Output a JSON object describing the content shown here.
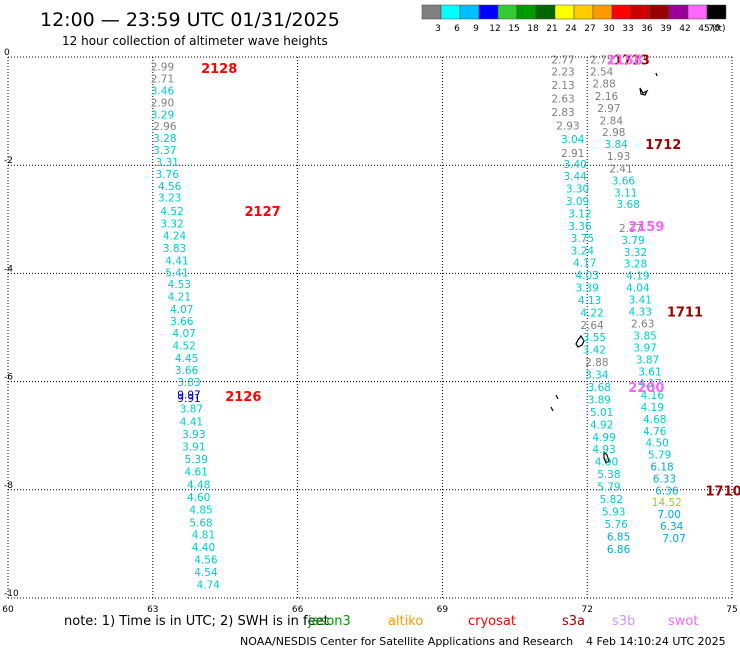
{
  "title": "12:00 — 23:59 UTC 01/31/2025",
  "subtitle": "12 hour collection of altimeter wave heights",
  "legend": {
    "unit": "(ft)",
    "labels": [
      "3",
      "6",
      "9",
      "12",
      "15",
      "18",
      "21",
      "24",
      "27",
      "30",
      "33",
      "36",
      "39",
      "42",
      "45",
      "70"
    ],
    "colors": [
      "#808080",
      "#00ffff",
      "#00bfff",
      "#0000ff",
      "#33cc33",
      "#009900",
      "#006600",
      "#ffff00",
      "#ffcc00",
      "#ff9900",
      "#ff0000",
      "#cc0000",
      "#990000",
      "#990099",
      "#ff66ff",
      "#000000"
    ]
  },
  "chart_data": {
    "type": "scatter",
    "xlim": [
      60,
      75
    ],
    "ylim": [
      -10,
      0
    ],
    "x_ticks": [
      "60",
      "63",
      "66",
      "69",
      "72",
      "75"
    ],
    "y_ticks": [
      "0",
      "-2",
      "-4",
      "-6",
      "-8",
      "-10"
    ],
    "grid": true,
    "point_labels": [
      {
        "x": 63.2,
        "y": -0.18,
        "label": "2.99",
        "color": "#808080"
      },
      {
        "x": 63.2,
        "y": -0.4,
        "label": "2.71",
        "color": "#808080"
      },
      {
        "x": 63.2,
        "y": -0.62,
        "label": "3.46",
        "color": "#00cccc"
      },
      {
        "x": 63.2,
        "y": -0.84,
        "label": "2.90",
        "color": "#808080"
      },
      {
        "x": 63.2,
        "y": -1.06,
        "label": "3.29",
        "color": "#00cccc"
      },
      {
        "x": 63.25,
        "y": -1.28,
        "label": "2.96",
        "color": "#808080"
      },
      {
        "x": 63.25,
        "y": -1.5,
        "label": "3.28",
        "color": "#00cccc"
      },
      {
        "x": 63.25,
        "y": -1.72,
        "label": "3.37",
        "color": "#00cccc"
      },
      {
        "x": 63.3,
        "y": -1.94,
        "label": "3.31",
        "color": "#00cccc"
      },
      {
        "x": 63.3,
        "y": -2.16,
        "label": "3.76",
        "color": "#00cccc"
      },
      {
        "x": 63.35,
        "y": -2.38,
        "label": "4.56",
        "color": "#00cccc"
      },
      {
        "x": 63.35,
        "y": -2.6,
        "label": "3.23",
        "color": "#00cccc"
      },
      {
        "x": 63.4,
        "y": -2.85,
        "label": "4.52",
        "color": "#00cccc"
      },
      {
        "x": 63.4,
        "y": -3.08,
        "label": "3.32",
        "color": "#00cccc"
      },
      {
        "x": 63.45,
        "y": -3.3,
        "label": "4.24",
        "color": "#00cccc"
      },
      {
        "x": 63.45,
        "y": -3.53,
        "label": "3.83",
        "color": "#00cccc"
      },
      {
        "x": 63.5,
        "y": -3.76,
        "label": "4.41",
        "color": "#00cccc"
      },
      {
        "x": 63.5,
        "y": -3.98,
        "label": "5.41",
        "color": "#00cccc"
      },
      {
        "x": 63.55,
        "y": -4.2,
        "label": "4.53",
        "color": "#00cccc"
      },
      {
        "x": 63.55,
        "y": -4.43,
        "label": "4.21",
        "color": "#00cccc"
      },
      {
        "x": 63.6,
        "y": -4.66,
        "label": "4.07",
        "color": "#00cccc"
      },
      {
        "x": 63.6,
        "y": -4.88,
        "label": "3.66",
        "color": "#00cccc"
      },
      {
        "x": 63.65,
        "y": -5.1,
        "label": "4.07",
        "color": "#00cccc"
      },
      {
        "x": 63.65,
        "y": -5.33,
        "label": "4.52",
        "color": "#00cccc"
      },
      {
        "x": 63.7,
        "y": -5.56,
        "label": "4.45",
        "color": "#00cccc"
      },
      {
        "x": 63.7,
        "y": -5.79,
        "label": "3.66",
        "color": "#00cccc"
      },
      {
        "x": 63.75,
        "y": -6.01,
        "label": "3.83",
        "color": "#00cccc"
      },
      {
        "x": 63.75,
        "y": -6.24,
        "label": "9.97",
        "color": "#0000cc"
      },
      {
        "x": 63.75,
        "y": -6.3,
        "label": "9.91",
        "color": "#0000cc"
      },
      {
        "x": 63.8,
        "y": -6.5,
        "label": "3.87",
        "color": "#00cccc"
      },
      {
        "x": 63.8,
        "y": -6.74,
        "label": "4.41",
        "color": "#00cccc"
      },
      {
        "x": 63.85,
        "y": -6.97,
        "label": "3.93",
        "color": "#00cccc"
      },
      {
        "x": 63.85,
        "y": -7.2,
        "label": "3.91",
        "color": "#00cccc"
      },
      {
        "x": 63.9,
        "y": -7.43,
        "label": "5.39",
        "color": "#00cccc"
      },
      {
        "x": 63.9,
        "y": -7.66,
        "label": "4.61",
        "color": "#00cccc"
      },
      {
        "x": 63.95,
        "y": -7.9,
        "label": "4.48",
        "color": "#00cccc"
      },
      {
        "x": 63.95,
        "y": -8.13,
        "label": "4.60",
        "color": "#00cccc"
      },
      {
        "x": 64.0,
        "y": -8.36,
        "label": "4.85",
        "color": "#00cccc"
      },
      {
        "x": 64.0,
        "y": -8.6,
        "label": "5.68",
        "color": "#00cccc"
      },
      {
        "x": 64.05,
        "y": -8.83,
        "label": "4.81",
        "color": "#00cccc"
      },
      {
        "x": 64.05,
        "y": -9.06,
        "label": "4.40",
        "color": "#00cccc"
      },
      {
        "x": 64.1,
        "y": -9.29,
        "label": "4.56",
        "color": "#00cccc"
      },
      {
        "x": 64.1,
        "y": -9.52,
        "label": "4.54",
        "color": "#00cccc"
      },
      {
        "x": 64.15,
        "y": -9.75,
        "label": "4.74",
        "color": "#00cccc"
      },
      {
        "x": 71.5,
        "y": -0.05,
        "label": "2.77",
        "color": "#808080"
      },
      {
        "x": 71.5,
        "y": -0.27,
        "label": "2.23",
        "color": "#808080"
      },
      {
        "x": 71.5,
        "y": -0.52,
        "label": "2.13",
        "color": "#808080"
      },
      {
        "x": 71.5,
        "y": -0.77,
        "label": "2.63",
        "color": "#808080"
      },
      {
        "x": 71.5,
        "y": -1.02,
        "label": "2.83",
        "color": "#808080"
      },
      {
        "x": 71.6,
        "y": -1.27,
        "label": "2.93",
        "color": "#808080"
      },
      {
        "x": 71.7,
        "y": -1.52,
        "label": "3.04",
        "color": "#00cccc"
      },
      {
        "x": 71.7,
        "y": -1.77,
        "label": "2.91",
        "color": "#808080"
      },
      {
        "x": 71.75,
        "y": -1.98,
        "label": "3.40",
        "color": "#00cccc"
      },
      {
        "x": 71.75,
        "y": -2.2,
        "label": "3.44",
        "color": "#00cccc"
      },
      {
        "x": 71.8,
        "y": -2.43,
        "label": "3.30",
        "color": "#00cccc"
      },
      {
        "x": 71.8,
        "y": -2.66,
        "label": "3.09",
        "color": "#00cccc"
      },
      {
        "x": 71.85,
        "y": -2.89,
        "label": "3.12",
        "color": "#00cccc"
      },
      {
        "x": 71.85,
        "y": -3.12,
        "label": "3.36",
        "color": "#00cccc"
      },
      {
        "x": 71.9,
        "y": -3.35,
        "label": "3.75",
        "color": "#00cccc"
      },
      {
        "x": 71.9,
        "y": -3.58,
        "label": "3.24",
        "color": "#00cccc"
      },
      {
        "x": 71.95,
        "y": -3.8,
        "label": "4.17",
        "color": "#00cccc"
      },
      {
        "x": 72.0,
        "y": -4.03,
        "label": "4.03",
        "color": "#00cccc"
      },
      {
        "x": 72.0,
        "y": -4.26,
        "label": "3.39",
        "color": "#00cccc"
      },
      {
        "x": 72.05,
        "y": -4.49,
        "label": "4.13",
        "color": "#00cccc"
      },
      {
        "x": 72.1,
        "y": -4.72,
        "label": "4.22",
        "color": "#00cccc"
      },
      {
        "x": 72.1,
        "y": -4.95,
        "label": "2.64",
        "color": "#808080"
      },
      {
        "x": 72.15,
        "y": -5.18,
        "label": "3.55",
        "color": "#00cccc"
      },
      {
        "x": 72.15,
        "y": -5.41,
        "label": "3.42",
        "color": "#00cccc"
      },
      {
        "x": 72.2,
        "y": -5.64,
        "label": "2.88",
        "color": "#808080"
      },
      {
        "x": 72.2,
        "y": -5.87,
        "label": "3.34",
        "color": "#00cccc"
      },
      {
        "x": 72.25,
        "y": -6.1,
        "label": "3.68",
        "color": "#00cccc"
      },
      {
        "x": 72.25,
        "y": -6.33,
        "label": "3.89",
        "color": "#00cccc"
      },
      {
        "x": 72.3,
        "y": -6.56,
        "label": "5.01",
        "color": "#00cccc"
      },
      {
        "x": 72.3,
        "y": -6.79,
        "label": "4.92",
        "color": "#00cccc"
      },
      {
        "x": 72.35,
        "y": -7.02,
        "label": "4.99",
        "color": "#00cccc"
      },
      {
        "x": 72.35,
        "y": -7.25,
        "label": "4.93",
        "color": "#00cccc"
      },
      {
        "x": 72.4,
        "y": -7.48,
        "label": "4.90",
        "color": "#00cccc"
      },
      {
        "x": 72.45,
        "y": -7.71,
        "label": "5.38",
        "color": "#00cccc"
      },
      {
        "x": 72.45,
        "y": -7.94,
        "label": "5.79",
        "color": "#00cccc"
      },
      {
        "x": 72.5,
        "y": -8.17,
        "label": "5.82",
        "color": "#00cccc"
      },
      {
        "x": 72.55,
        "y": -8.4,
        "label": "5.93",
        "color": "#00cccc"
      },
      {
        "x": 72.6,
        "y": -8.63,
        "label": "5.76",
        "color": "#00cccc"
      },
      {
        "x": 72.65,
        "y": -8.86,
        "label": "6.85",
        "color": "#00aadd"
      },
      {
        "x": 72.65,
        "y": -9.09,
        "label": "6.86",
        "color": "#00aadd"
      },
      {
        "x": 72.3,
        "y": -0.05,
        "label": "2.75",
        "color": "#808080"
      },
      {
        "x": 72.3,
        "y": -0.27,
        "label": "2.54",
        "color": "#808080"
      },
      {
        "x": 72.35,
        "y": -0.49,
        "label": "2.88",
        "color": "#808080"
      },
      {
        "x": 72.4,
        "y": -0.72,
        "label": "2.16",
        "color": "#808080"
      },
      {
        "x": 72.45,
        "y": -0.94,
        "label": "2.97",
        "color": "#808080"
      },
      {
        "x": 72.5,
        "y": -1.17,
        "label": "2.84",
        "color": "#808080"
      },
      {
        "x": 72.55,
        "y": -1.39,
        "label": "2.98",
        "color": "#808080"
      },
      {
        "x": 72.6,
        "y": -1.61,
        "label": "3.84",
        "color": "#00cccc"
      },
      {
        "x": 72.65,
        "y": -1.83,
        "label": "1.93",
        "color": "#808080"
      },
      {
        "x": 72.7,
        "y": -2.06,
        "label": "2.41",
        "color": "#808080"
      },
      {
        "x": 72.75,
        "y": -2.28,
        "label": "3.66",
        "color": "#00cccc"
      },
      {
        "x": 72.8,
        "y": -2.5,
        "label": "3.11",
        "color": "#00cccc"
      },
      {
        "x": 72.85,
        "y": -2.72,
        "label": "3.68",
        "color": "#00cccc"
      },
      {
        "x": 72.9,
        "y": -3.16,
        "label": "2.37",
        "color": "#808080"
      },
      {
        "x": 72.95,
        "y": -3.38,
        "label": "3.79",
        "color": "#00cccc"
      },
      {
        "x": 73.0,
        "y": -3.6,
        "label": "3.32",
        "color": "#00cccc"
      },
      {
        "x": 73.0,
        "y": -3.82,
        "label": "3.28",
        "color": "#00cccc"
      },
      {
        "x": 73.05,
        "y": -4.04,
        "label": "4.19",
        "color": "#00cccc"
      },
      {
        "x": 73.05,
        "y": -4.26,
        "label": "4.04",
        "color": "#00cccc"
      },
      {
        "x": 73.1,
        "y": -4.48,
        "label": "3.41",
        "color": "#00cccc"
      },
      {
        "x": 73.1,
        "y": -4.7,
        "label": "4.33",
        "color": "#00cccc"
      },
      {
        "x": 73.15,
        "y": -4.93,
        "label": "2.63",
        "color": "#808080"
      },
      {
        "x": 73.2,
        "y": -5.15,
        "label": "3.85",
        "color": "#00cccc"
      },
      {
        "x": 73.2,
        "y": -5.37,
        "label": "3.97",
        "color": "#00cccc"
      },
      {
        "x": 73.25,
        "y": -5.59,
        "label": "3.87",
        "color": "#00cccc"
      },
      {
        "x": 73.3,
        "y": -5.81,
        "label": "3.61",
        "color": "#00cccc"
      },
      {
        "x": 73.3,
        "y": -6.03,
        "label": "4.17",
        "color": "#00cccc"
      },
      {
        "x": 73.35,
        "y": -6.25,
        "label": "4.16",
        "color": "#00cccc"
      },
      {
        "x": 73.35,
        "y": -6.47,
        "label": "4.19",
        "color": "#00cccc"
      },
      {
        "x": 73.4,
        "y": -6.69,
        "label": "4.68",
        "color": "#00cccc"
      },
      {
        "x": 73.4,
        "y": -6.91,
        "label": "4.76",
        "color": "#00cccc"
      },
      {
        "x": 73.45,
        "y": -7.13,
        "label": "4.50",
        "color": "#00cccc"
      },
      {
        "x": 73.5,
        "y": -7.35,
        "label": "5.79",
        "color": "#00cccc"
      },
      {
        "x": 73.55,
        "y": -7.57,
        "label": "6.18",
        "color": "#00aadd"
      },
      {
        "x": 73.6,
        "y": -7.79,
        "label": "6.33",
        "color": "#00aadd"
      },
      {
        "x": 73.65,
        "y": -8.01,
        "label": "6.36",
        "color": "#00aadd"
      },
      {
        "x": 73.65,
        "y": -8.23,
        "label": "14.52",
        "color": "#99cc33"
      },
      {
        "x": 73.7,
        "y": -8.45,
        "label": "7.00",
        "color": "#00aadd"
      },
      {
        "x": 73.75,
        "y": -8.67,
        "label": "6.34",
        "color": "#00aadd"
      },
      {
        "x": 73.8,
        "y": -8.89,
        "label": "7.07",
        "color": "#00aadd"
      }
    ],
    "annotations": [
      {
        "x": 64.0,
        "y": -0.2,
        "label": "2128",
        "color": "#ff0000"
      },
      {
        "x": 64.9,
        "y": -2.85,
        "label": "2127",
        "color": "#ff0000"
      },
      {
        "x": 64.5,
        "y": -6.27,
        "label": "2126",
        "color": "#ff0000"
      },
      {
        "x": 72.55,
        "y": -0.05,
        "label": "1713",
        "color": "#990000"
      },
      {
        "x": 72.4,
        "y": -0.05,
        "label": "2158",
        "color": "#ff66ff"
      },
      {
        "x": 73.2,
        "y": -1.61,
        "label": "1712",
        "color": "#990000"
      },
      {
        "x": 72.85,
        "y": -3.12,
        "label": "2159",
        "color": "#ff66ff"
      },
      {
        "x": 73.65,
        "y": -4.7,
        "label": "1711",
        "color": "#990000"
      },
      {
        "x": 72.85,
        "y": -6.1,
        "label": "2200",
        "color": "#ff66ff"
      },
      {
        "x": 74.45,
        "y": -8.01,
        "label": "1710",
        "color": "#990000"
      }
    ]
  },
  "note": "note:  1) Time is in UTC;  2) SWH is in feet",
  "satellites": [
    {
      "label": "jason3",
      "color": "#009900"
    },
    {
      "label": "altiko",
      "color": "#ff9900"
    },
    {
      "label": "cryosat",
      "color": "#ff0000"
    },
    {
      "label": "s3a",
      "color": "#990000"
    },
    {
      "label": "s3b",
      "color": "#cc99ff"
    },
    {
      "label": "swot",
      "color": "#ff66ff"
    }
  ],
  "credit": "NOAA/NESDIS Center for Satellite Applications and Research",
  "timestamp": "4 Feb 14:10:24 UTC 2025"
}
